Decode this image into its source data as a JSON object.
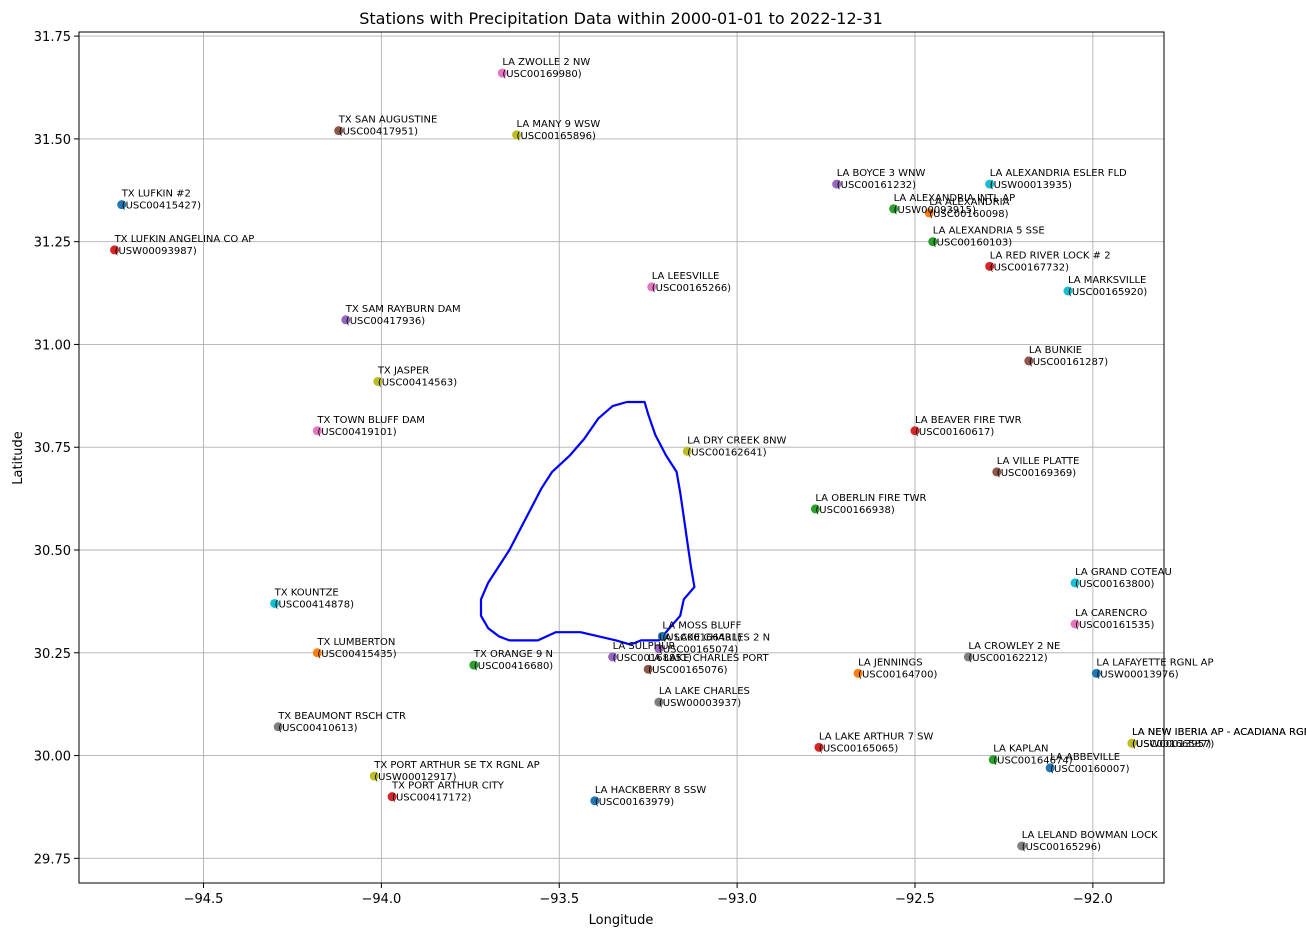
{
  "chart_data": {
    "type": "scatter",
    "title": "Stations with Precipitation Data within 2000-01-01 to 2022-12-31",
    "xlabel": "Longitude",
    "ylabel": "Latitude",
    "xlim": [
      -94.85,
      -91.8
    ],
    "ylim": [
      29.69,
      31.76
    ],
    "xticks": [
      -94.5,
      -94.0,
      -93.5,
      -93.0,
      -92.5,
      -92.0
    ],
    "xtick_labels": [
      "−94.5",
      "−94.0",
      "−93.5",
      "−93.0",
      "−92.5",
      "−92.0"
    ],
    "yticks": [
      29.75,
      30.0,
      30.25,
      30.5,
      30.75,
      31.0,
      31.25,
      31.5,
      31.75
    ],
    "ytick_labels": [
      "29.75",
      "30.00",
      "30.25",
      "30.50",
      "30.75",
      "31.00",
      "31.25",
      "31.50",
      "31.75"
    ],
    "grid": true,
    "stations": [
      {
        "name": "LA ZWOLLE 2 NW",
        "id": "(USC00169980)",
        "x": -93.66,
        "y": 31.66,
        "color": "#e377c2"
      },
      {
        "name": "TX SAN AUGUSTINE",
        "id": "(USC00417951)",
        "x": -94.12,
        "y": 31.52,
        "color": "#8c564b"
      },
      {
        "name": "LA MANY 9 WSW",
        "id": "(USC00165896)",
        "x": -93.62,
        "y": 31.51,
        "color": "#bcbd22"
      },
      {
        "name": "TX LUFKIN #2",
        "id": "(USC00415427)",
        "x": -94.73,
        "y": 31.34,
        "color": "#1f77b4"
      },
      {
        "name": "TX LUFKIN ANGELINA CO AP",
        "id": "(USW00093987)",
        "x": -94.75,
        "y": 31.23,
        "color": "#d62728"
      },
      {
        "name": "LA BOYCE 3 WNW",
        "id": "(USC00161232)",
        "x": -92.72,
        "y": 31.39,
        "color": "#9467bd"
      },
      {
        "name": "LA ALEXANDRIA ESLER FLD",
        "id": "(USW00013935)",
        "x": -92.29,
        "y": 31.39,
        "color": "#17becf"
      },
      {
        "name": "LA ALEXANDRIA INTL AP",
        "id": "(USW00093915)",
        "x": -92.56,
        "y": 31.33,
        "color": "#2ca02c"
      },
      {
        "name": "LA ALEXANDRIA",
        "id": "(USC00160098)",
        "x": -92.46,
        "y": 31.32,
        "color": "#ff7f0e"
      },
      {
        "name": "LA ALEXANDRIA 5 SSE",
        "id": "(USC00160103)",
        "x": -92.45,
        "y": 31.25,
        "color": "#2ca02c"
      },
      {
        "name": "LA RED RIVER LOCK # 2",
        "id": "(USC00167732)",
        "x": -92.29,
        "y": 31.19,
        "color": "#d62728"
      },
      {
        "name": "LA MARKSVILLE",
        "id": "(USC00165920)",
        "x": -92.07,
        "y": 31.13,
        "color": "#17becf"
      },
      {
        "name": "LA LEESVILLE",
        "id": "(USC00165266)",
        "x": -93.24,
        "y": 31.14,
        "color": "#e377c2"
      },
      {
        "name": "TX SAM RAYBURN DAM",
        "id": "(USC00417936)",
        "x": -94.1,
        "y": 31.06,
        "color": "#9467bd"
      },
      {
        "name": "LA BUNKIE",
        "id": "(USC00161287)",
        "x": -92.18,
        "y": 30.96,
        "color": "#8c564b"
      },
      {
        "name": "TX JASPER",
        "id": "(USC00414563)",
        "x": -94.01,
        "y": 30.91,
        "color": "#bcbd22"
      },
      {
        "name": "LA BEAVER FIRE TWR",
        "id": "(USC00160617)",
        "x": -92.5,
        "y": 30.79,
        "color": "#d62728"
      },
      {
        "name": "TX TOWN BLUFF DAM",
        "id": "(USC00419101)",
        "x": -94.18,
        "y": 30.79,
        "color": "#e377c2"
      },
      {
        "name": "LA DRY CREEK 8NW",
        "id": "(USC00162641)",
        "x": -93.14,
        "y": 30.74,
        "color": "#bcbd22"
      },
      {
        "name": "LA VILLE PLATTE",
        "id": "(USC00169369)",
        "x": -92.27,
        "y": 30.69,
        "color": "#8c564b"
      },
      {
        "name": "LA OBERLIN FIRE TWR",
        "id": "(USC00166938)",
        "x": -92.78,
        "y": 30.6,
        "color": "#2ca02c"
      },
      {
        "name": "LA GRAND COTEAU",
        "id": "(USC00163800)",
        "x": -92.05,
        "y": 30.42,
        "color": "#17becf"
      },
      {
        "name": "TX KOUNTZE",
        "id": "(USC00414878)",
        "x": -94.3,
        "y": 30.37,
        "color": "#17becf"
      },
      {
        "name": "LA CARENCRO",
        "id": "(USC00161535)",
        "x": -92.05,
        "y": 30.32,
        "color": "#e377c2"
      },
      {
        "name": "LA MOSS BLUFF",
        "id": "(USC00166431)",
        "x": -93.21,
        "y": 30.29,
        "color": "#1f77b4"
      },
      {
        "name": "LA LAKE CHARLES 2 N",
        "id": "(USC00165074)",
        "x": -93.22,
        "y": 30.26,
        "color": "#9467bd"
      },
      {
        "name": "TX LUMBERTON",
        "id": "(USC00415435)",
        "x": -94.18,
        "y": 30.25,
        "color": "#ff7f0e"
      },
      {
        "name": "LA SULPHUR",
        "id": "(USC00168851)",
        "x": -93.35,
        "y": 30.24,
        "color": "#9467bd"
      },
      {
        "name": "LA LAKE CHARLES PORT",
        "id": "(USC00165076)",
        "x": -93.25,
        "y": 30.21,
        "color": "#8c564b"
      },
      {
        "name": "LA CROWLEY 2 NE",
        "id": "(USC00162212)",
        "x": -92.35,
        "y": 30.24,
        "color": "#7f7f7f"
      },
      {
        "name": "TX ORANGE 9 N",
        "id": "(USC00416680)",
        "x": -93.74,
        "y": 30.22,
        "color": "#2ca02c"
      },
      {
        "name": "LA JENNINGS",
        "id": "(USC00164700)",
        "x": -92.66,
        "y": 30.2,
        "color": "#ff7f0e"
      },
      {
        "name": "LA LAFAYETTE RGNL AP",
        "id": "(USW00013976)",
        "x": -91.99,
        "y": 30.2,
        "color": "#1f77b4"
      },
      {
        "name": "LA LAKE CHARLES",
        "id": "(USW00003937)",
        "x": -93.22,
        "y": 30.13,
        "color": "#7f7f7f"
      },
      {
        "name": "TX BEAUMONT RSCH CTR",
        "id": "(USC00410613)",
        "x": -94.29,
        "y": 30.07,
        "color": "#7f7f7f"
      },
      {
        "name": "LA NEW IBERIA AP - ACADIANA RGNL",
        "id": "(USW00013957)",
        "x": -91.89,
        "y": 30.03,
        "color": "#ff7f0e"
      },
      {
        "name": "LA NEW IBERIA AP - ACADIANA RGNL",
        "id": "(USC00166587)",
        "x": -91.89,
        "y": 30.03,
        "color": "#bcbd22"
      },
      {
        "name": "LA LAKE ARTHUR 7 SW",
        "id": "(USC00165065)",
        "x": -92.77,
        "y": 30.02,
        "color": "#d62728"
      },
      {
        "name": "LA KAPLAN",
        "id": "(USC00164674)",
        "x": -92.28,
        "y": 29.99,
        "color": "#2ca02c"
      },
      {
        "name": "LA ABBEVILLE",
        "id": "(USC00160007)",
        "x": -92.12,
        "y": 29.97,
        "color": "#1f77b4"
      },
      {
        "name": "TX PORT ARTHUR SE TX RGNL AP",
        "id": "(USW00012917)",
        "x": -94.02,
        "y": 29.95,
        "color": "#bcbd22"
      },
      {
        "name": "TX PORT ARTHUR CITY",
        "id": "(USC00417172)",
        "x": -93.97,
        "y": 29.9,
        "color": "#d62728"
      },
      {
        "name": "LA HACKBERRY 8 SSW",
        "id": "(USC00163979)",
        "x": -93.4,
        "y": 29.89,
        "color": "#1f77b4"
      },
      {
        "name": "LA LELAND BOWMAN LOCK",
        "id": "(USC00165296)",
        "x": -92.2,
        "y": 29.78,
        "color": "#7f7f7f"
      }
    ],
    "boundary": {
      "color": "#0000ff",
      "points": [
        [
          -93.31,
          30.86
        ],
        [
          -93.26,
          30.86
        ],
        [
          -93.25,
          30.83
        ],
        [
          -93.23,
          30.78
        ],
        [
          -93.2,
          30.73
        ],
        [
          -93.17,
          30.69
        ],
        [
          -93.16,
          30.64
        ],
        [
          -93.15,
          30.58
        ],
        [
          -93.14,
          30.52
        ],
        [
          -93.13,
          30.46
        ],
        [
          -93.12,
          30.41
        ],
        [
          -93.15,
          30.38
        ],
        [
          -93.16,
          30.34
        ],
        [
          -93.19,
          30.31
        ],
        [
          -93.22,
          30.28
        ],
        [
          -93.27,
          30.28
        ],
        [
          -93.3,
          30.27
        ],
        [
          -93.34,
          30.28
        ],
        [
          -93.39,
          30.29
        ],
        [
          -93.44,
          30.3
        ],
        [
          -93.51,
          30.3
        ],
        [
          -93.56,
          30.28
        ],
        [
          -93.6,
          30.28
        ],
        [
          -93.62,
          30.28
        ],
        [
          -93.64,
          30.28
        ],
        [
          -93.67,
          30.29
        ],
        [
          -93.7,
          30.31
        ],
        [
          -93.72,
          30.34
        ],
        [
          -93.72,
          30.38
        ],
        [
          -93.7,
          30.42
        ],
        [
          -93.67,
          30.46
        ],
        [
          -93.64,
          30.5
        ],
        [
          -93.61,
          30.55
        ],
        [
          -93.58,
          30.6
        ],
        [
          -93.55,
          30.65
        ],
        [
          -93.52,
          30.69
        ],
        [
          -93.47,
          30.73
        ],
        [
          -93.43,
          30.77
        ],
        [
          -93.39,
          30.82
        ],
        [
          -93.35,
          30.85
        ],
        [
          -93.31,
          30.86
        ]
      ]
    }
  }
}
